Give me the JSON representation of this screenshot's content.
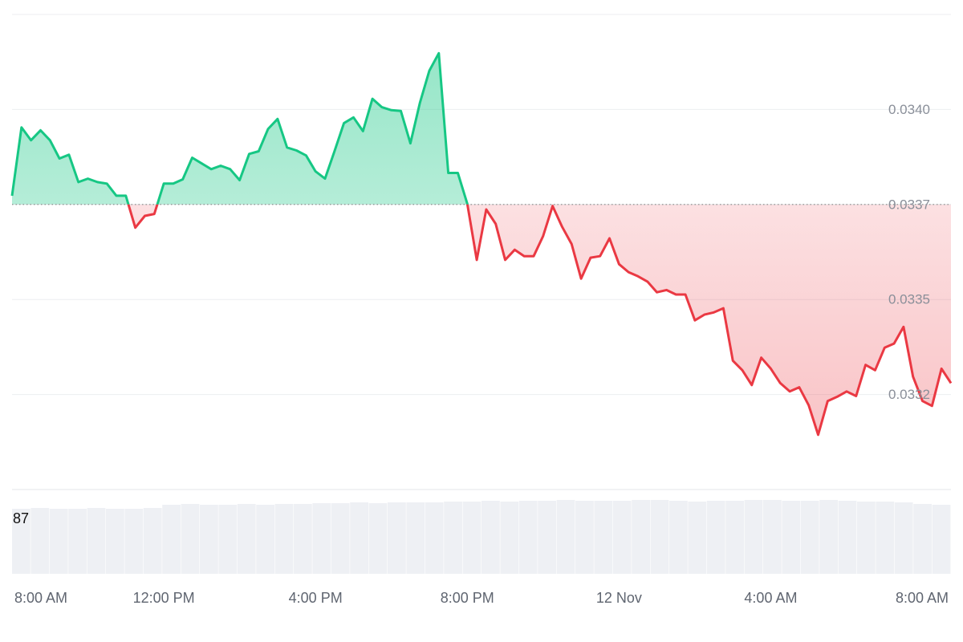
{
  "chart_data": {
    "type": "line",
    "x": [
      0,
      0.25,
      0.5,
      0.75,
      1,
      1.25,
      1.5,
      1.75,
      2,
      2.25,
      2.5,
      2.75,
      3,
      3.25,
      3.5,
      3.75,
      4,
      4.25,
      4.5,
      4.75,
      5,
      5.25,
      5.5,
      5.75,
      6,
      6.25,
      6.5,
      6.75,
      7,
      7.25,
      7.5,
      7.75,
      8,
      8.25,
      8.5,
      8.75,
      9,
      9.25,
      9.5,
      9.75,
      10,
      10.25,
      10.5,
      10.75,
      11,
      11.25,
      11.5,
      11.75,
      12,
      12.25,
      12.5,
      12.75,
      13,
      13.25,
      13.5,
      13.75,
      14,
      14.25,
      14.5,
      14.75,
      15,
      15.25,
      15.5,
      15.75,
      16,
      16.25,
      16.5,
      16.75,
      17,
      17.25,
      17.5,
      17.75,
      18,
      18.25,
      18.5,
      18.75,
      19,
      19.25,
      19.5,
      19.75,
      20,
      20.25,
      20.5,
      20.75,
      21,
      21.25,
      21.5,
      21.75,
      22,
      22.25,
      22.5,
      22.75,
      23,
      23.25,
      23.5,
      23.75,
      24,
      24.25,
      24.5,
      24.75
    ],
    "values": [
      0.033773,
      0.033953,
      0.033919,
      0.033945,
      0.033919,
      0.033871,
      0.033881,
      0.033809,
      0.033818,
      0.033809,
      0.033805,
      0.033773,
      0.033773,
      0.033689,
      0.03372,
      0.033725,
      0.033805,
      0.033805,
      0.033816,
      0.033873,
      0.033858,
      0.033843,
      0.033852,
      0.033843,
      0.033814,
      0.033883,
      0.03389,
      0.033949,
      0.033975,
      0.0339,
      0.033892,
      0.033879,
      0.033837,
      0.033818,
      0.03389,
      0.033964,
      0.033979,
      0.033943,
      0.034028,
      0.034006,
      0.033998,
      0.033996,
      0.033911,
      0.034017,
      0.034102,
      0.034148,
      0.033833,
      0.033833,
      0.033752,
      0.033604,
      0.033737,
      0.033699,
      0.033604,
      0.033631,
      0.033614,
      0.033614,
      0.033667,
      0.033746,
      0.033691,
      0.033646,
      0.033555,
      0.03361,
      0.033614,
      0.033661,
      0.033593,
      0.033572,
      0.033561,
      0.033547,
      0.033519,
      0.033525,
      0.033513,
      0.033513,
      0.033445,
      0.03346,
      0.033466,
      0.033477,
      0.033339,
      0.033314,
      0.033275,
      0.033347,
      0.033318,
      0.03328,
      0.033258,
      0.033269,
      0.033222,
      0.033144,
      0.033233,
      0.033244,
      0.033258,
      0.033246,
      0.033328,
      0.033314,
      0.033373,
      0.033384,
      0.033428,
      0.033297,
      0.033233,
      0.03322,
      0.033318,
      0.03328
    ],
    "baseline": 0.03375,
    "up_color": "#16c784",
    "down_color": "#ea3943",
    "xlim": [
      0,
      24.75
    ],
    "xticks": [
      {
        "value": 0,
        "label": "8:00 AM"
      },
      {
        "value": 4,
        "label": "12:00 PM"
      },
      {
        "value": 8,
        "label": "4:00 PM"
      },
      {
        "value": 12,
        "label": "8:00 PM"
      },
      {
        "value": 16,
        "label": "12 Nov"
      },
      {
        "value": 20,
        "label": "4:00 AM"
      },
      {
        "value": 24,
        "label": "8:00 AM"
      }
    ],
    "ylim": [
      0.033,
      0.03425
    ],
    "yticks": [
      {
        "value": 0.034,
        "label": "0.0340"
      },
      {
        "value": 0.03375,
        "label": "0.0337"
      },
      {
        "value": 0.0335,
        "label": "0.0335"
      },
      {
        "value": 0.03325,
        "label": "0.0332"
      }
    ],
    "grid": true,
    "volume_label": "87",
    "volume": {
      "color": "#eef0f4",
      "ylim": [
        0,
        100
      ],
      "values": [
        81,
        82,
        81,
        81,
        82,
        81,
        81,
        82,
        86,
        87,
        86,
        86,
        87,
        86,
        87,
        87,
        88,
        88,
        89,
        88,
        89,
        89,
        89,
        90,
        90,
        91,
        90,
        91,
        91,
        92,
        91,
        91,
        91,
        92,
        92,
        91,
        90,
        91,
        91,
        92,
        92,
        91,
        91,
        92,
        91,
        90,
        90,
        89,
        87,
        86
      ]
    }
  }
}
